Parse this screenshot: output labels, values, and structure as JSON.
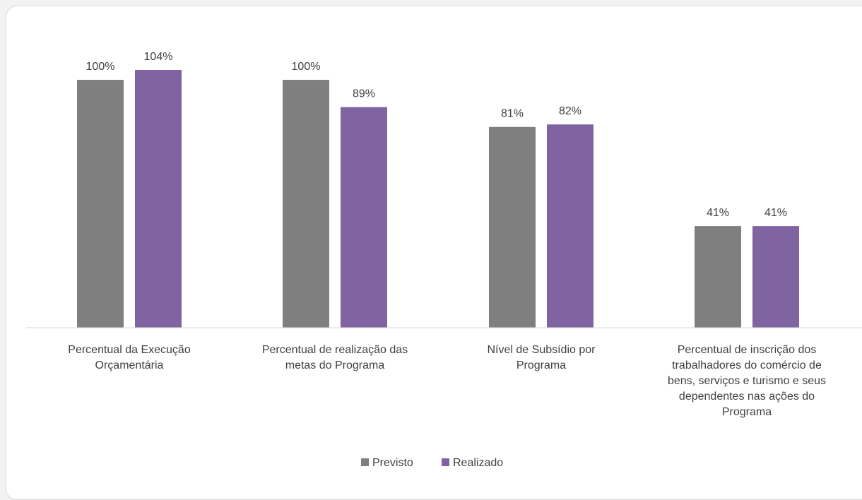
{
  "chart_data": {
    "type": "bar",
    "categories": [
      [
        "Percentual da Execução",
        "Orçamentária"
      ],
      [
        "Percentual de realização das",
        "metas do Programa"
      ],
      [
        "Nível de Subsídio por",
        "Programa"
      ],
      [
        "Percentual de inscrição dos",
        "trabalhadores do comércio de",
        "bens, serviços e turismo e seus",
        "dependentes nas ações do",
        "Programa"
      ]
    ],
    "series": [
      {
        "name": "Previsto",
        "values": [
          1.0,
          1.0,
          0.81,
          0.41
        ],
        "labels": [
          "100%",
          "100%",
          "81%",
          "41%"
        ],
        "color": "#7f7f7f"
      },
      {
        "name": "Realizado",
        "values": [
          1.04,
          0.89,
          0.82,
          0.41
        ],
        "labels": [
          "104%",
          "89%",
          "82%",
          "41%"
        ],
        "color": "#8064a2"
      }
    ],
    "ylim": [
      0,
      1.04
    ],
    "legend": "bottom",
    "grid": false
  }
}
